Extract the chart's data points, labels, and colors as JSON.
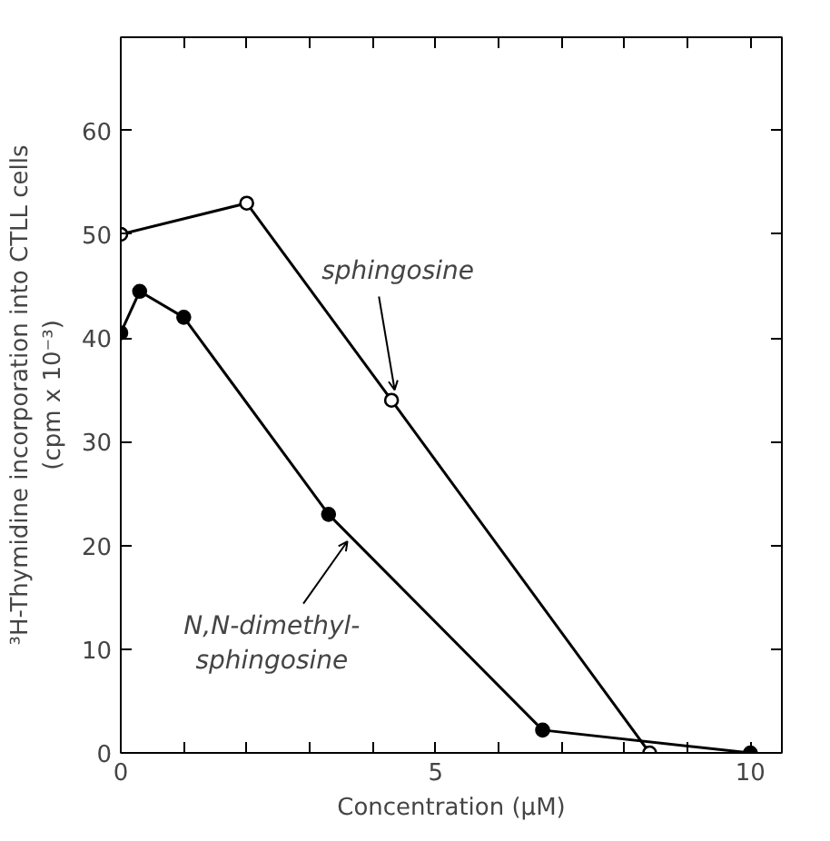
{
  "chart_data": {
    "type": "line",
    "xlabel": "Concentration (μM)",
    "ylabel": "³H-Thymidine incorporation into CTLL cells\n(cpm x 10⁻³)",
    "xlim": [
      0,
      10.5
    ],
    "ylim": [
      0,
      69
    ],
    "xticks": [
      0,
      {
        "value": 1,
        "label": null
      },
      {
        "value": 2,
        "label": null
      },
      {
        "value": 3,
        "label": null
      },
      {
        "value": 4,
        "label": null
      },
      5,
      {
        "value": 6,
        "label": null
      },
      {
        "value": 7,
        "label": null
      },
      {
        "value": 8,
        "label": null
      },
      {
        "value": 9,
        "label": null
      },
      10
    ],
    "yticks": [
      0,
      10,
      20,
      30,
      40,
      50,
      60
    ],
    "grid": false,
    "marker": "circle",
    "line_style": "solid",
    "annotations": [
      {
        "text": "sphingosine",
        "x": 4.35,
        "y": 35
      },
      {
        "text": "N,N-dimethyl-sphingosine",
        "x": 3.6,
        "y": 20.4
      }
    ],
    "series": [
      {
        "color": "#000000",
        "x": [
          0,
          2,
          4.3,
          8.4
        ],
        "values": [
          50,
          53,
          34,
          0
        ]
      },
      {
        "color": "#000000",
        "x": [
          0,
          0.3,
          1,
          3.3,
          6.7,
          10
        ],
        "values": [
          40.5,
          44.5,
          42,
          23,
          2.2,
          0
        ]
      }
    ]
  }
}
